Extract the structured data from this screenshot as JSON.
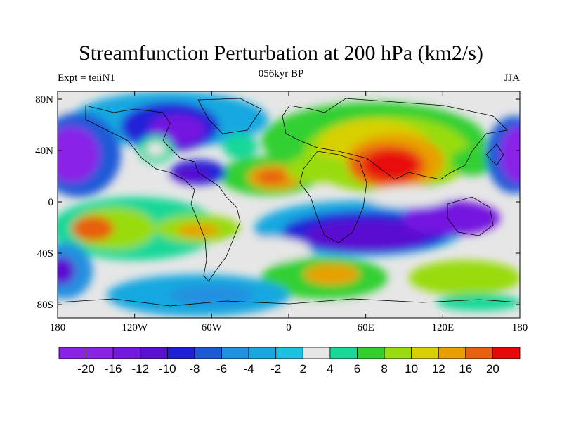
{
  "title": "Streamfunction Perturbation at 200 hPa (km2/s)",
  "left_label": "Expt = teiiN1",
  "center_label": "056kyr BP",
  "right_label": "JJA",
  "map": {
    "lat_ticks": [
      "80N",
      "40N",
      "0",
      "40S",
      "80S"
    ],
    "lon_ticks": [
      "180",
      "120W",
      "60W",
      "0",
      "60E",
      "120E",
      "180"
    ]
  },
  "colorbar": {
    "labels": [
      "-20",
      "-16",
      "-12",
      "-10",
      "-8",
      "-6",
      "-4",
      "-2",
      "2",
      "4",
      "6",
      "8",
      "10",
      "12",
      "16",
      "20"
    ],
    "colors": [
      "#8a22e8",
      "#7518e0",
      "#5a10d0",
      "#2020d8",
      "#1c5ad8",
      "#2090e0",
      "#18a8e0",
      "#1cc0e0",
      "#e6e6e6",
      "#18d898",
      "#30d030",
      "#98dc10",
      "#d8d000",
      "#e8a000",
      "#e86010",
      "#e80808"
    ]
  },
  "chart_data": {
    "type": "heatmap",
    "title": "Streamfunction Perturbation at 200 hPa (km2/s)",
    "x_ticks": [
      "180",
      "120W",
      "60W",
      "0",
      "60E",
      "120E",
      "180"
    ],
    "y_ticks": [
      "80N",
      "40N",
      "0",
      "40S",
      "80S"
    ],
    "color_levels": [
      -20,
      -16,
      -12,
      -10,
      -8,
      -6,
      -4,
      -2,
      2,
      4,
      6,
      8,
      10,
      12,
      16,
      20
    ]
  }
}
